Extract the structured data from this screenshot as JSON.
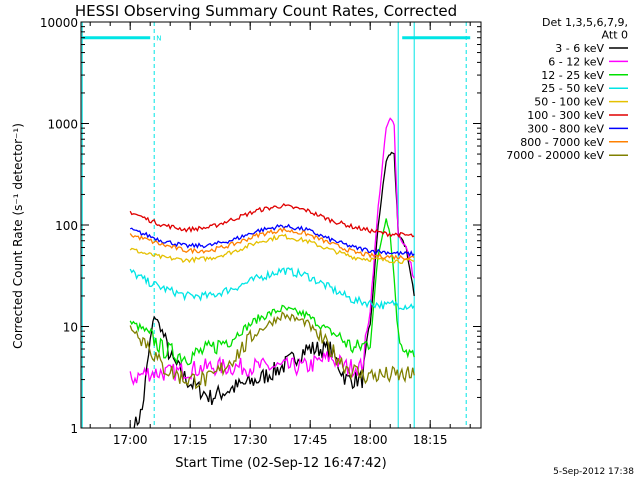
{
  "title": "HESSI Observing Summary Count Rates, Corrected",
  "timestamp": "5-Sep-2012 17:38",
  "chart_data": {
    "type": "line",
    "title": "HESSI Observing Summary Count Rates, Corrected",
    "xlabel": "Start Time (02-Sep-12 16:47:42)",
    "ylabel": "Corrected Count Rate (s⁻¹ detector⁻¹)",
    "y_scale": "log",
    "ylim": [
      1,
      10000
    ],
    "xlim": [
      "16:47:42",
      "18:27:42"
    ],
    "x_ticks": [
      "17:00",
      "17:15",
      "17:30",
      "17:45",
      "18:00",
      "18:15"
    ],
    "y_ticks": [
      "1",
      "10",
      "100",
      "1000",
      "10000"
    ],
    "legend_header": [
      "Det 1,3,5,6,7,9,",
      "Att 0"
    ],
    "legend_position": "top-right, outside plot",
    "grid": false,
    "annotations": [
      {
        "type": "bar",
        "label": "N",
        "start": "16:48",
        "end": "17:05",
        "y": 7000,
        "color": "#00e5e5"
      },
      {
        "type": "bar",
        "label": "",
        "start": "18:08",
        "end": "18:25",
        "y": 7000,
        "color": "#00e5e5"
      },
      {
        "type": "vline",
        "time": "16:48",
        "style": "solid",
        "color": "#00e5e5"
      },
      {
        "type": "vline",
        "time": "17:06",
        "style": "dashed",
        "color": "#00e5e5"
      },
      {
        "type": "vline",
        "time": "18:07",
        "style": "solid",
        "color": "#00e5e5"
      },
      {
        "type": "vline",
        "time": "18:11",
        "style": "solid",
        "color": "#00e5e5"
      },
      {
        "type": "vline",
        "time": "18:24",
        "style": "dashed",
        "color": "#00e5e5"
      }
    ],
    "series": [
      {
        "name": "3 - 6 keV",
        "color": "#000000",
        "times": [
          "17:01",
          "17:03",
          "17:05",
          "17:06",
          "17:08",
          "17:10",
          "17:14",
          "17:20",
          "17:26",
          "17:32",
          "17:38",
          "17:44",
          "17:50",
          "17:54",
          "17:58",
          "18:00",
          "18:02",
          "18:04",
          "18:05",
          "18:06",
          "18:07",
          "18:09",
          "18:11"
        ],
        "values": [
          1.0,
          1.5,
          7,
          13,
          9,
          5,
          3,
          2,
          2.5,
          3,
          4,
          6,
          6,
          3,
          3,
          10,
          100,
          430,
          500,
          520,
          80,
          60,
          20
        ]
      },
      {
        "name": "6 - 12 keV",
        "color": "#ff00ff",
        "times": [
          "17:00",
          "17:04",
          "17:10",
          "17:20",
          "17:30",
          "17:38",
          "17:44",
          "17:50",
          "17:54",
          "17:58",
          "18:00",
          "18:02",
          "18:04",
          "18:05",
          "18:06",
          "18:07",
          "18:09",
          "18:11"
        ],
        "values": [
          3,
          3.5,
          3.5,
          4,
          4,
          4,
          4,
          5,
          4,
          4,
          15,
          150,
          900,
          1100,
          1000,
          80,
          60,
          30
        ]
      },
      {
        "name": "12 - 25 keV",
        "color": "#00e000",
        "times": [
          "17:00",
          "17:04",
          "17:08",
          "17:14",
          "17:20",
          "17:26",
          "17:32",
          "17:38",
          "17:44",
          "17:48",
          "17:52",
          "17:56",
          "18:00",
          "18:02",
          "18:04",
          "18:05",
          "18:06",
          "18:07",
          "18:09",
          "18:11"
        ],
        "values": [
          11,
          9,
          6,
          5,
          6,
          8,
          12,
          15,
          13,
          10,
          8,
          6,
          7,
          50,
          120,
          80,
          30,
          8,
          6,
          5
        ]
      },
      {
        "name": "25 - 50 keV",
        "color": "#00e5e5",
        "times": [
          "17:00",
          "17:04",
          "17:08",
          "17:14",
          "17:20",
          "17:26",
          "17:32",
          "17:38",
          "17:44",
          "17:50",
          "17:56",
          "18:00",
          "18:04",
          "18:06",
          "18:08",
          "18:11"
        ],
        "values": [
          35,
          28,
          24,
          20,
          20,
          24,
          30,
          36,
          32,
          24,
          18,
          17,
          16,
          17,
          16,
          16
        ]
      },
      {
        "name": "50 - 100 keV",
        "color": "#e5c000",
        "times": [
          "17:00",
          "17:04",
          "17:08",
          "17:14",
          "17:20",
          "17:26",
          "17:32",
          "17:38",
          "17:44",
          "17:50",
          "17:56",
          "18:00",
          "18:04",
          "18:08",
          "18:11"
        ],
        "values": [
          58,
          52,
          48,
          45,
          47,
          55,
          68,
          78,
          70,
          57,
          48,
          46,
          45,
          44,
          44
        ]
      },
      {
        "name": "100 - 300 keV",
        "color": "#e00000",
        "times": [
          "17:00",
          "17:04",
          "17:08",
          "17:14",
          "17:20",
          "17:26",
          "17:32",
          "17:38",
          "17:44",
          "17:50",
          "17:56",
          "18:00",
          "18:04",
          "18:08",
          "18:11"
        ],
        "values": [
          135,
          115,
          100,
          90,
          95,
          115,
          140,
          155,
          140,
          112,
          95,
          88,
          82,
          80,
          78
        ]
      },
      {
        "name": "300 - 800 keV",
        "color": "#0000ff",
        "times": [
          "17:00",
          "17:04",
          "17:08",
          "17:14",
          "17:20",
          "17:26",
          "17:32",
          "17:38",
          "17:44",
          "17:50",
          "17:56",
          "18:00",
          "18:04",
          "18:08",
          "18:11"
        ],
        "values": [
          90,
          80,
          70,
          62,
          63,
          72,
          88,
          98,
          90,
          72,
          60,
          56,
          54,
          52,
          52
        ]
      },
      {
        "name": "800 - 7000 keV",
        "color": "#ff8000",
        "times": [
          "17:00",
          "17:04",
          "17:08",
          "17:14",
          "17:20",
          "17:26",
          "17:32",
          "17:38",
          "17:44",
          "17:50",
          "17:56",
          "18:00",
          "18:04",
          "18:08",
          "18:11"
        ],
        "values": [
          80,
          72,
          64,
          56,
          56,
          65,
          80,
          90,
          82,
          66,
          54,
          50,
          49,
          48,
          48
        ]
      },
      {
        "name": "7000 - 20000 keV",
        "color": "#808000",
        "times": [
          "17:00",
          "17:04",
          "17:08",
          "17:14",
          "17:20",
          "17:26",
          "17:32",
          "17:38",
          "17:44",
          "17:50",
          "17:54",
          "17:58",
          "18:02",
          "18:06",
          "18:11"
        ],
        "values": [
          10,
          7,
          4,
          3,
          3,
          5,
          9,
          13,
          11,
          6,
          4,
          3.3,
          3.3,
          3.3,
          3.3
        ]
      }
    ]
  }
}
